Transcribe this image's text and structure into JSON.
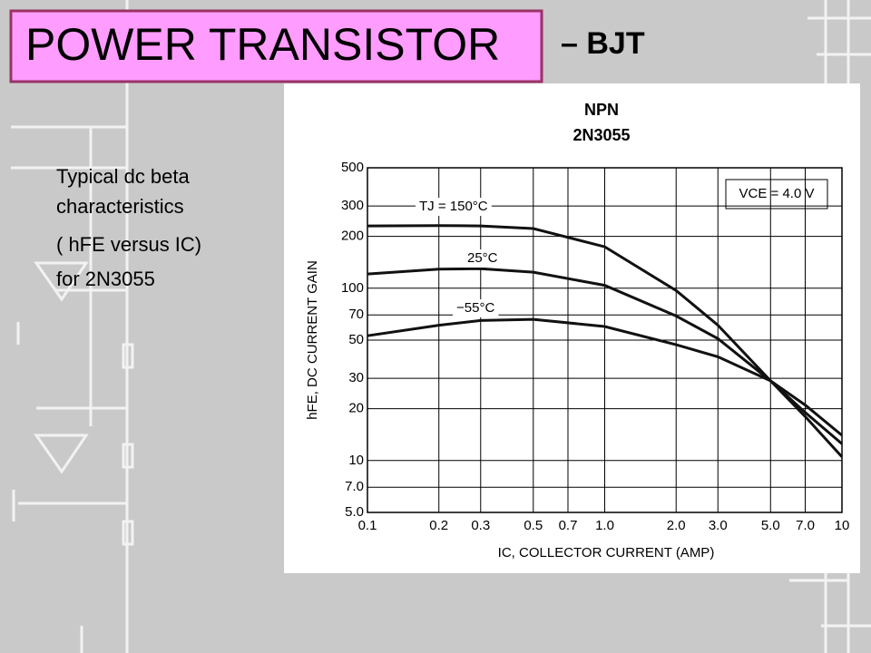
{
  "slide": {
    "title": "POWER TRANSISTOR",
    "title_suffix": "– BJT",
    "caption": [
      "Typical dc beta",
      "characteristics",
      "( hFE versus IC)",
      "for 2N3055"
    ]
  },
  "chart_data": {
    "type": "line",
    "title": "NPN",
    "subtitle": "2N3055",
    "x_label": "IC, COLLECTOR CURRENT (AMP)",
    "y_label": "hFE, DC CURRENT GAIN",
    "annotation": "VCE = 4.0 V",
    "x": [
      0.1,
      0.2,
      0.3,
      0.5,
      1.0,
      2.0,
      3.0,
      5.0,
      7.0,
      10
    ],
    "series": [
      {
        "name": "TJ = 150°C",
        "color": "#111111",
        "values": [
          230,
          231,
          230,
          222,
          174,
          97,
          61,
          29,
          18,
          10.5
        ]
      },
      {
        "name": "25°C",
        "color": "#111111",
        "values": [
          121,
          129,
          130,
          124,
          104,
          69,
          51,
          29,
          19,
          12.5
        ]
      },
      {
        "name": "−55°C",
        "color": "#111111",
        "values": [
          53,
          61,
          65,
          66,
          60,
          47,
          40,
          29,
          21,
          14
        ]
      }
    ],
    "xlim": [
      0.1,
      10
    ],
    "ylim": [
      5,
      500
    ],
    "log_x": true,
    "log_y": true,
    "grid": true,
    "xticks": [
      0.1,
      0.2,
      0.3,
      0.5,
      0.7,
      {
        "value": 1,
        "label": "1.0"
      },
      {
        "value": 2,
        "label": "2.0"
      },
      {
        "value": 3,
        "label": "3.0"
      },
      {
        "value": 5,
        "label": "5.0"
      },
      {
        "value": 7,
        "label": "7.0"
      },
      10
    ],
    "yticks": [
      {
        "value": 5,
        "label": "5.0"
      },
      {
        "value": 7,
        "label": "7.0"
      },
      10,
      20,
      30,
      50,
      70,
      100,
      200,
      300,
      500
    ]
  }
}
